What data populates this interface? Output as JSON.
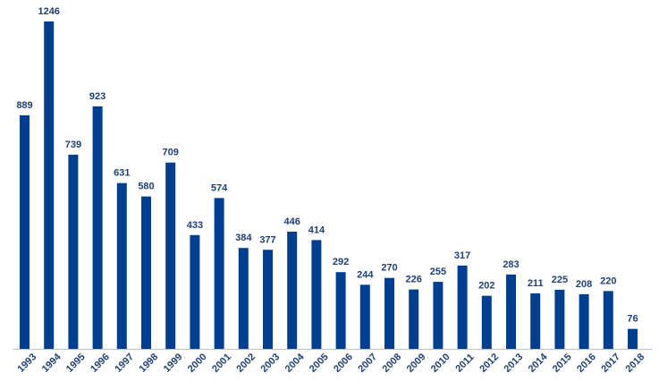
{
  "chart_data": {
    "type": "bar",
    "title": "",
    "xlabel": "",
    "ylabel": "",
    "ylim": [
      0,
      1300
    ],
    "grid": false,
    "legend": "none",
    "bar_color": "#003f8f",
    "label_color": "#1f3f73",
    "categories": [
      "1993",
      "1994",
      "1995",
      "1996",
      "1997",
      "1998",
      "1999",
      "2000",
      "2001",
      "2002",
      "2003",
      "2004",
      "2005",
      "2006",
      "2007",
      "2008",
      "2009",
      "2010",
      "2011",
      "2012",
      "2013",
      "2014",
      "2015",
      "2016",
      "2017",
      "2018"
    ],
    "values": [
      889,
      1246,
      739,
      923,
      631,
      580,
      709,
      433,
      574,
      384,
      377,
      446,
      414,
      292,
      244,
      270,
      226,
      255,
      317,
      202,
      283,
      211,
      225,
      208,
      220,
      76
    ]
  }
}
